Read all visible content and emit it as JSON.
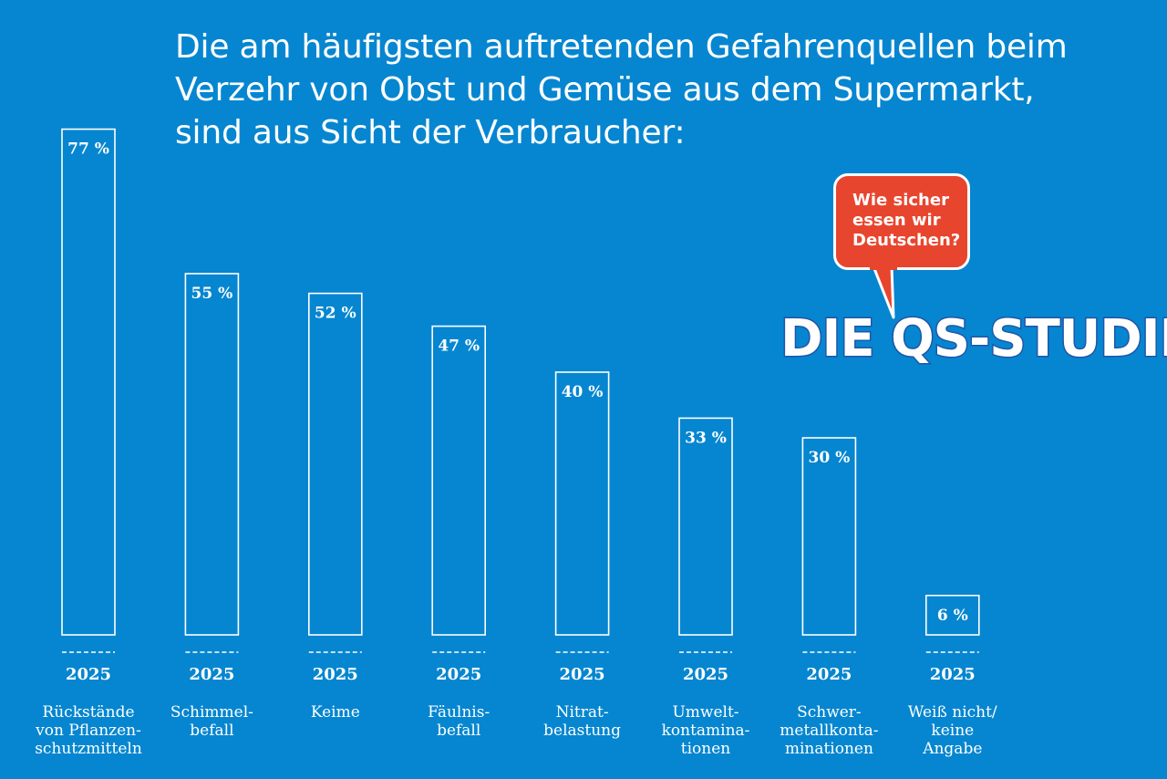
{
  "title_lines": [
    "Die am häufigsten auftretenden Gefahrenquellen beim",
    "Verzehr von Obst und Gemüse aus dem Supermarkt,",
    "sind aus Sicht der Verbraucher:"
  ],
  "bubble_lines": [
    "Wie sicher",
    "essen wir",
    "Deutschen?"
  ],
  "logo_text": "DIE QS-STUDIE",
  "colors": {
    "background": "#0686d0",
    "bubble": "#e8452e",
    "logo_outline": "#1f56a8"
  },
  "chart_data": {
    "type": "bar",
    "unit": "%",
    "ylim": [
      0,
      80
    ],
    "grid": false,
    "categories": [
      [
        "Rückstände",
        "von Pflanzen-",
        "schutzmitteln"
      ],
      [
        "Schimmel-",
        "befall"
      ],
      [
        "Keime"
      ],
      [
        "Fäulnis-",
        "befall"
      ],
      [
        "Nitrat-",
        "belastung"
      ],
      [
        "Umwelt-",
        "kontamina-",
        "tionen"
      ],
      [
        "Schwer-",
        "metallkonta-",
        "minationen"
      ],
      [
        "Weiß nicht/",
        "keine",
        "Angabe"
      ]
    ],
    "year_labels": [
      "2025",
      "2025",
      "2025",
      "2025",
      "2025",
      "2025",
      "2025",
      "2025"
    ],
    "series": [
      {
        "values": [
          77,
          55,
          52,
          47,
          40,
          33,
          30,
          6
        ],
        "value_labels": [
          "77 %",
          "55 %",
          "52 %",
          "47 %",
          "40 %",
          "33 %",
          "30 %",
          "6 %"
        ]
      }
    ]
  }
}
